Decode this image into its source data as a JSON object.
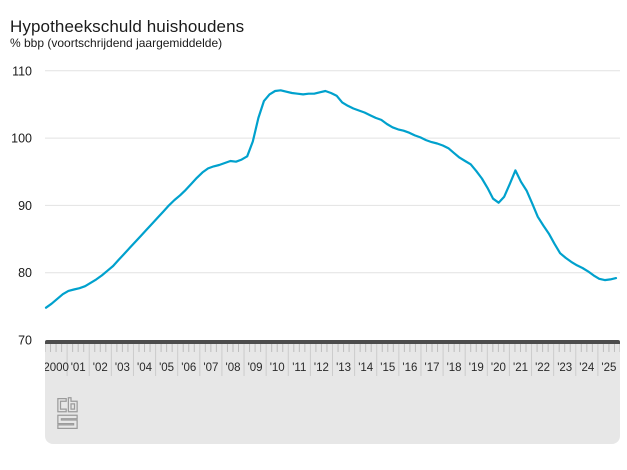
{
  "title": "Hypotheekschuld huishoudens",
  "subtitle": "% bbp (voortschrijdend jaargemiddelde)",
  "footer": {
    "logo_icon": "cbs-logo"
  },
  "colors": {
    "line": "#00a1cd",
    "text": "#1a1a1a",
    "gridline": "#e2e2e2",
    "band_bg": "#e7e7e7",
    "band_bar": "#4d4d4d",
    "tick": "#bdbdbd",
    "separator": "#cccccc",
    "logo": "#9b9b9b"
  },
  "chart_data": {
    "type": "line",
    "title": "Hypotheekschuld huishoudens",
    "ylabel": "% bbp (voortschrijdend jaargemiddelde)",
    "ylim": [
      70,
      110
    ],
    "y_ticks": [
      70,
      80,
      90,
      100,
      110
    ],
    "grid": "horizontal",
    "legend": "none",
    "x_labels": [
      "2000",
      "'01",
      "'02",
      "'03",
      "'04",
      "'05",
      "'06",
      "'07",
      "'08",
      "'09",
      "'10",
      "'11",
      "'12",
      "'13",
      "'14",
      "'15",
      "'16",
      "'17",
      "'18",
      "'19",
      "'20",
      "'21",
      "'22",
      "'23",
      "'24",
      "'25"
    ],
    "x_start": 2000.0,
    "x_step": 0.25,
    "series": [
      {
        "name": "Hypotheekschuld huishoudens (% bbp)",
        "values": [
          74.8,
          75.4,
          76.1,
          76.8,
          77.3,
          77.5,
          77.7,
          78.0,
          78.5,
          79.0,
          79.6,
          80.3,
          81.0,
          81.9,
          82.8,
          83.7,
          84.6,
          85.5,
          86.4,
          87.3,
          88.2,
          89.1,
          90.0,
          90.8,
          91.5,
          92.3,
          93.2,
          94.1,
          94.9,
          95.5,
          95.8,
          96.0,
          96.3,
          96.6,
          96.5,
          96.8,
          97.3,
          99.5,
          103.0,
          105.5,
          106.5,
          107.0,
          107.1,
          106.9,
          106.7,
          106.6,
          106.5,
          106.6,
          106.6,
          106.8,
          107.0,
          106.7,
          106.3,
          105.3,
          104.8,
          104.4,
          104.1,
          103.8,
          103.4,
          103.0,
          102.7,
          102.1,
          101.6,
          101.3,
          101.1,
          100.8,
          100.4,
          100.1,
          99.7,
          99.4,
          99.2,
          98.9,
          98.5,
          97.8,
          97.1,
          96.6,
          96.1,
          95.1,
          94.0,
          92.6,
          91.0,
          90.4,
          91.3,
          93.2,
          95.2,
          93.5,
          92.2,
          90.3,
          88.3,
          87.0,
          85.8,
          84.3,
          82.9,
          82.2,
          81.6,
          81.1,
          80.7,
          80.2,
          79.6,
          79.1,
          78.9,
          79.0,
          79.2
        ]
      }
    ]
  }
}
